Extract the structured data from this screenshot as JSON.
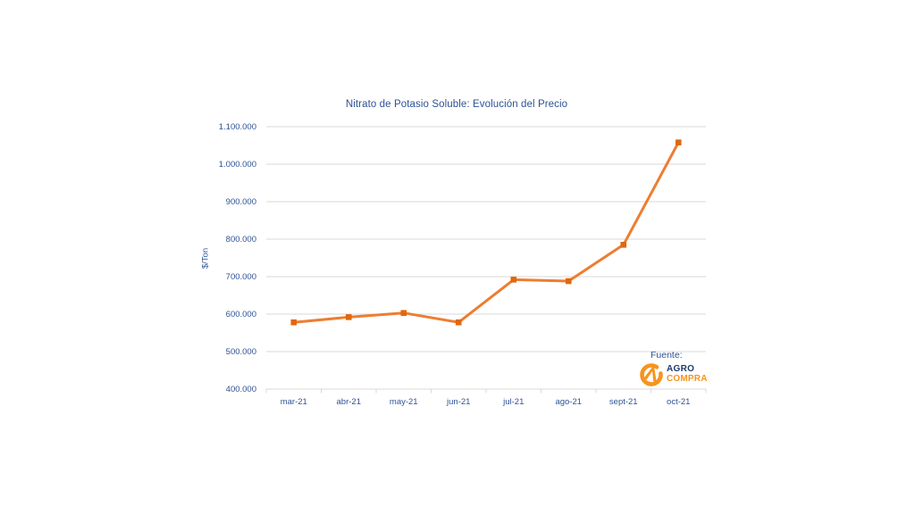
{
  "page": {
    "background": "#ffffff"
  },
  "chart_data": {
    "type": "line",
    "title": "Nitrato de Potasio Soluble: Evolución del Precio",
    "xlabel": "",
    "ylabel": "$/Ton",
    "categories": [
      "mar-21",
      "abr-21",
      "may-21",
      "jun-21",
      "jul-21",
      "ago-21",
      "sept-21",
      "oct-21"
    ],
    "series": [
      {
        "values": [
          578000,
          592000,
          603000,
          578000,
          692000,
          688000,
          785000,
          1058000
        ]
      }
    ],
    "ylim": [
      400000,
      1100000
    ],
    "ytick_step": 100000,
    "ytick_labels": [
      "400.000",
      "500.000",
      "600.000",
      "700.000",
      "800.000",
      "900.000",
      "1.000.000",
      "1.100.000"
    ],
    "grid": true,
    "legend_position": "none",
    "marker": "square"
  },
  "source": {
    "label": "Fuente:",
    "logo_line1": "AGRO",
    "logo_line2": "COMPRA"
  },
  "colors": {
    "line": "#ED7D31",
    "marker": "#E0680E",
    "grid": "#D9D9D9",
    "axis": "#D9D9D9",
    "text": "#2E5395",
    "logo_navy": "#1E3A6E",
    "logo_orange": "#F7941D",
    "background": "#FFFFFF"
  }
}
